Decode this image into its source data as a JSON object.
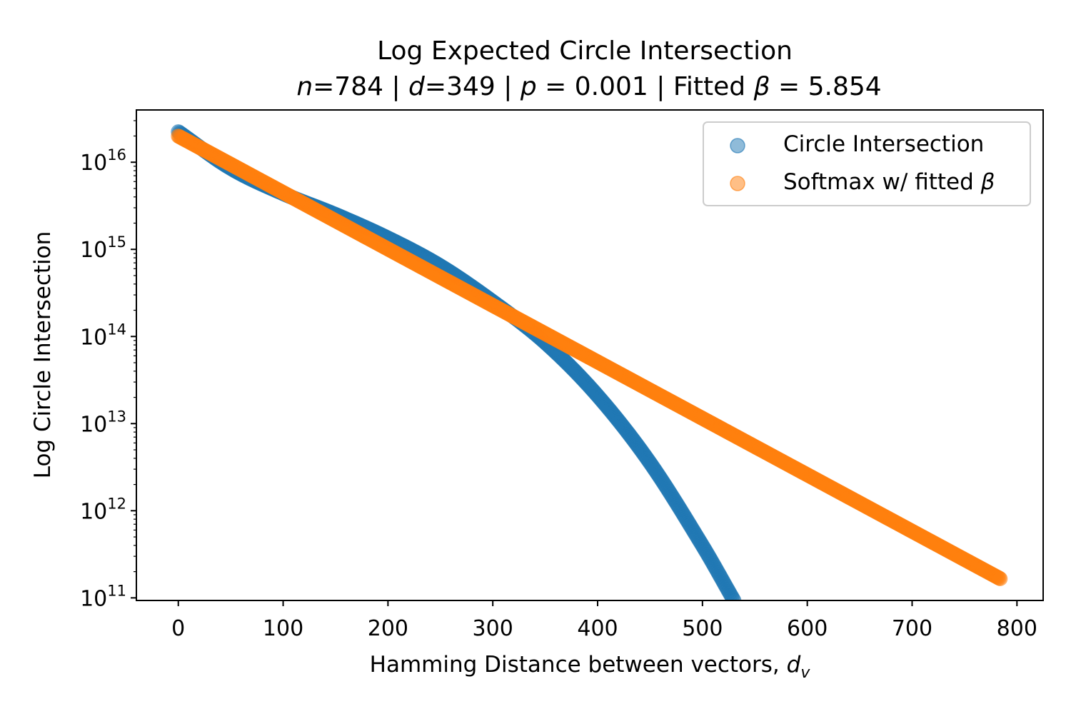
{
  "chart_data": {
    "type": "scatter",
    "title": "Log Expected Circle Intersection",
    "subtitle": {
      "n_label": "n",
      "n_value": "=784",
      "sep1": " | ",
      "d_label": "d",
      "d_value": "=349",
      "sep2": " | ",
      "p_label": "p",
      "p_value": " = 0.001",
      "sep3": " | Fitted ",
      "beta_symbol": "β",
      "beta_value": " = 5.854"
    },
    "xlabel": "Hamming Distance between vectors, ",
    "xlabel_var": "d",
    "xlabel_sub": "v",
    "ylabel": "Log Circle Intersection",
    "y_scale": "log",
    "xlim": [
      -40,
      825
    ],
    "ylim_log10": [
      10.97,
      16.6
    ],
    "x_ticks": [
      0,
      100,
      200,
      300,
      400,
      500,
      600,
      700,
      800
    ],
    "y_ticks": [
      {
        "base": "10",
        "exp": "11"
      },
      {
        "base": "10",
        "exp": "12"
      },
      {
        "base": "10",
        "exp": "13"
      },
      {
        "base": "10",
        "exp": "14"
      },
      {
        "base": "10",
        "exp": "15"
      },
      {
        "base": "10",
        "exp": "16"
      }
    ],
    "legend": {
      "position": "upper right",
      "items": [
        {
          "label": "Circle Intersection",
          "color": "#1f77b4"
        },
        {
          "label": "Softmax w/ fitted ",
          "beta": "β",
          "color": "#ff7f0e"
        }
      ]
    },
    "series": [
      {
        "name": "Circle Intersection",
        "color": "#1f77b4",
        "x_range": [
          0,
          530
        ],
        "control_points_log10": [
          [
            0,
            16.35
          ],
          [
            50,
            15.93
          ],
          [
            100,
            15.64
          ],
          [
            150,
            15.4
          ],
          [
            200,
            15.13
          ],
          [
            250,
            14.81
          ],
          [
            300,
            14.4
          ],
          [
            350,
            13.93
          ],
          [
            400,
            13.32
          ],
          [
            450,
            12.55
          ],
          [
            500,
            11.6
          ],
          [
            530,
            10.97
          ]
        ]
      },
      {
        "name": "Softmax w/ fitted β",
        "color": "#ff7f0e",
        "x_range": [
          0,
          784
        ],
        "control_points_log10": [
          [
            0,
            16.3
          ],
          [
            784,
            11.22
          ]
        ]
      }
    ]
  }
}
